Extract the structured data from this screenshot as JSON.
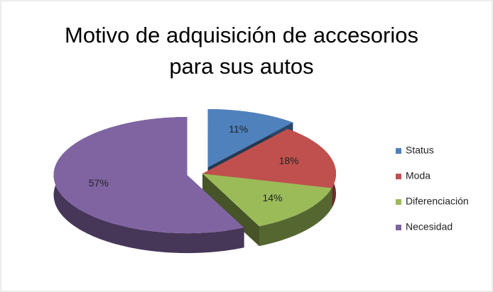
{
  "chart_data": {
    "type": "pie",
    "title": "Motivo de adquisición de accesorios para sus autos",
    "categories": [
      "Status",
      "Moda",
      "Diferenciación",
      "Necesidad"
    ],
    "values": [
      11,
      18,
      14,
      57
    ],
    "value_labels": [
      "11%",
      "18%",
      "14%",
      "57%"
    ],
    "colors": [
      "#4f81bd",
      "#c0504d",
      "#9bbb59",
      "#8064a2"
    ],
    "exploded": [
      true,
      false,
      false,
      true
    ],
    "legend": "right"
  }
}
